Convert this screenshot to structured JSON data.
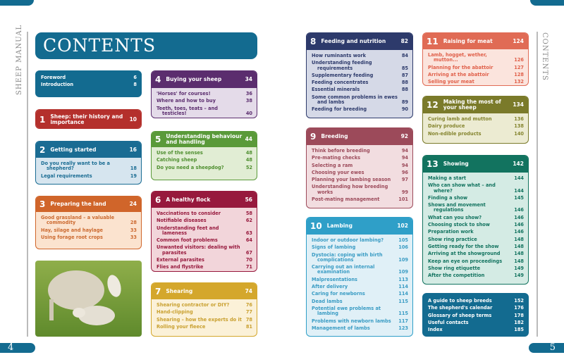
{
  "left_page": {
    "running_title": "SHEEP MANUAL",
    "page_number": "4",
    "title": "CONTENTS"
  },
  "right_page": {
    "running_title": "CONTENTS",
    "page_number": "5"
  },
  "front_matter": {
    "items": [
      {
        "title": "Foreword",
        "page": "6"
      },
      {
        "title": "Introduction",
        "page": "8"
      }
    ],
    "color": "#136b90"
  },
  "chapters": [
    {
      "num": "1",
      "title": "Sheep: their history and importance",
      "page": "10",
      "color": "#b4302c",
      "light": "#b4302c",
      "text": "#ffffff",
      "items": []
    },
    {
      "num": "2",
      "title": "Getting started",
      "page": "16",
      "color": "#1a6c93",
      "light": "#d6e5ef",
      "text": "#1a6c93",
      "items": [
        {
          "title": "Do you really want to be a shepherd?",
          "page": "18"
        },
        {
          "title": "Legal requirements",
          "page": "19"
        }
      ]
    },
    {
      "num": "3",
      "title": "Preparing the land",
      "page": "24",
      "color": "#d0652a",
      "light": "#fbe3cf",
      "text": "#cc6a30",
      "items": [
        {
          "title": "Good grassland – a valuable commodity",
          "page": "28"
        },
        {
          "title": "Hay, silage and haylage",
          "page": "33"
        },
        {
          "title": "Using forage root crops",
          "page": "33"
        }
      ]
    },
    {
      "num": "4",
      "title": "Buying your sheep",
      "page": "34",
      "color": "#5b2d6e",
      "light": "#e4dbe9",
      "text": "#5b2d6e",
      "items": [
        {
          "title": "'Horses' for courses!",
          "page": "36"
        },
        {
          "title": "Where and how to buy",
          "page": "38"
        },
        {
          "title": "Teeth, toes, teats – and testicles!",
          "page": "40"
        }
      ]
    },
    {
      "num": "5",
      "title": "Understanding behaviour and handling",
      "page": "44",
      "color": "#5a9a39",
      "light": "#e1edd4",
      "text": "#4f8f30",
      "items": [
        {
          "title": "Use of the senses",
          "page": "48"
        },
        {
          "title": "Catching sheep",
          "page": "48"
        },
        {
          "title": "Do you need a sheepdog?",
          "page": "52"
        }
      ]
    },
    {
      "num": "6",
      "title": "A healthy flock",
      "page": "56",
      "color": "#97193d",
      "light": "#f2d5da",
      "text": "#97193d",
      "items": [
        {
          "title": "Vaccinations to consider",
          "page": "58"
        },
        {
          "title": "Notifiable diseases",
          "page": "62"
        },
        {
          "title": "Understanding feet and lameness",
          "page": "63"
        },
        {
          "title": "Common foot problems",
          "page": "64"
        },
        {
          "title": "Unwanted visitors: dealing with parasites",
          "page": "67"
        },
        {
          "title": "External parasites",
          "page": "70"
        },
        {
          "title": "Flies and flystrike",
          "page": "71"
        }
      ]
    },
    {
      "num": "7",
      "title": "Shearing",
      "page": "74",
      "color": "#d4a72c",
      "light": "#fbf1d8",
      "text": "#c9a030",
      "items": [
        {
          "title": "Shearing contractor or DIY?",
          "page": "76"
        },
        {
          "title": "Hand-clipping",
          "page": "77"
        },
        {
          "title": "Shearing – how the experts do it",
          "page": "78"
        },
        {
          "title": "Rolling your fleece",
          "page": "81"
        }
      ]
    },
    {
      "num": "8",
      "title": "Feeding and nutrition",
      "page": "82",
      "color": "#2d3a6b",
      "light": "#d5d9e7",
      "text": "#2d3a6b",
      "items": [
        {
          "title": "How ruminants work",
          "page": "84"
        },
        {
          "title": "Understanding feeding requirements",
          "page": "85"
        },
        {
          "title": "Supplementary feeding",
          "page": "87"
        },
        {
          "title": "Feeding concentrates",
          "page": "88"
        },
        {
          "title": "Essential minerals",
          "page": "88"
        },
        {
          "title": "Some common problems in ewes and lambs",
          "page": "89"
        },
        {
          "title": "Feeding for breeding",
          "page": "90"
        }
      ]
    },
    {
      "num": "9",
      "title": "Breeding",
      "page": "92",
      "color": "#9c4a5a",
      "light": "#f2dde0",
      "text": "#9c4a5a",
      "items": [
        {
          "title": "Think before breeding",
          "page": "94"
        },
        {
          "title": "Pre-mating checks",
          "page": "94"
        },
        {
          "title": "Selecting a ram",
          "page": "94"
        },
        {
          "title": "Choosing your ewes",
          "page": "96"
        },
        {
          "title": "Planning your lambing season",
          "page": "97"
        },
        {
          "title": "Understanding how breeding works",
          "page": "99"
        },
        {
          "title": "Post-mating management",
          "page": "101"
        }
      ]
    },
    {
      "num": "10",
      "title": "Lambing",
      "page": "102",
      "color": "#2f9fc8",
      "light": "#e0f0f7",
      "text": "#3a9cc4",
      "items": [
        {
          "title": "Indoor or outdoor lambing?",
          "page": "105"
        },
        {
          "title": "Signs of lambing",
          "page": "106"
        },
        {
          "title": "Dystocia: coping with birth complications",
          "page": "109"
        },
        {
          "title": "Carrying out an internal examination",
          "page": "109"
        },
        {
          "title": "Malpresentations",
          "page": "113"
        },
        {
          "title": "After delivery",
          "page": "114"
        },
        {
          "title": "Caring for newborns",
          "page": "114"
        },
        {
          "title": "Dead lambs",
          "page": "115"
        },
        {
          "title": "Potential ewe problems at lambing",
          "page": "115"
        },
        {
          "title": "Problems with newborn lambs",
          "page": "117"
        },
        {
          "title": "Management of lambs",
          "page": "123"
        }
      ]
    },
    {
      "num": "11",
      "title": "Raising for meat",
      "page": "124",
      "color": "#e06b55",
      "light": "#fbe4dd",
      "text": "#e0604a",
      "items": [
        {
          "title": "Lamb, hogget, wether, mutton...",
          "page": "126"
        },
        {
          "title": "Planning for the abattoir",
          "page": "127"
        },
        {
          "title": "Arriving at the abattoir",
          "page": "128"
        },
        {
          "title": "Selling your meat",
          "page": "132"
        }
      ]
    },
    {
      "num": "12",
      "title": "Making the most of your sheep",
      "page": "134",
      "color": "#7a7a2a",
      "light": "#ecebd2",
      "text": "#85852f",
      "items": [
        {
          "title": "Curing lamb and mutton",
          "page": "136"
        },
        {
          "title": "Dairy produce",
          "page": "138"
        },
        {
          "title": "Non-edible products",
          "page": "140"
        }
      ]
    },
    {
      "num": "13",
      "title": "Showing",
      "page": "142",
      "color": "#12735f",
      "light": "#d4ebe4",
      "text": "#12735f",
      "items": [
        {
          "title": "Making a start",
          "page": "144"
        },
        {
          "title": "Who can show what – and where?",
          "page": "144"
        },
        {
          "title": "Finding a show",
          "page": "145"
        },
        {
          "title": "Shows and movement regulations",
          "page": "146"
        },
        {
          "title": "What can you show?",
          "page": "146"
        },
        {
          "title": "Choosing stock to show",
          "page": "146"
        },
        {
          "title": "Preparation work",
          "page": "146"
        },
        {
          "title": "Show ring practice",
          "page": "148"
        },
        {
          "title": "Getting ready for the show",
          "page": "148"
        },
        {
          "title": "Arriving at the showground",
          "page": "148"
        },
        {
          "title": "Keep an eye on proceedings",
          "page": "148"
        },
        {
          "title": "Show ring etiquette",
          "page": "149"
        },
        {
          "title": "After the competition",
          "page": "149"
        }
      ]
    }
  ],
  "back_matter": {
    "items": [
      {
        "title": "A guide to sheep breeds",
        "page": "152"
      },
      {
        "title": "The shepherd's calendar",
        "page": "176"
      },
      {
        "title": "Glossary of sheep terms",
        "page": "178"
      },
      {
        "title": "Useful contacts",
        "page": "182"
      },
      {
        "title": "Index",
        "page": "185"
      }
    ],
    "color": "#136b90"
  }
}
